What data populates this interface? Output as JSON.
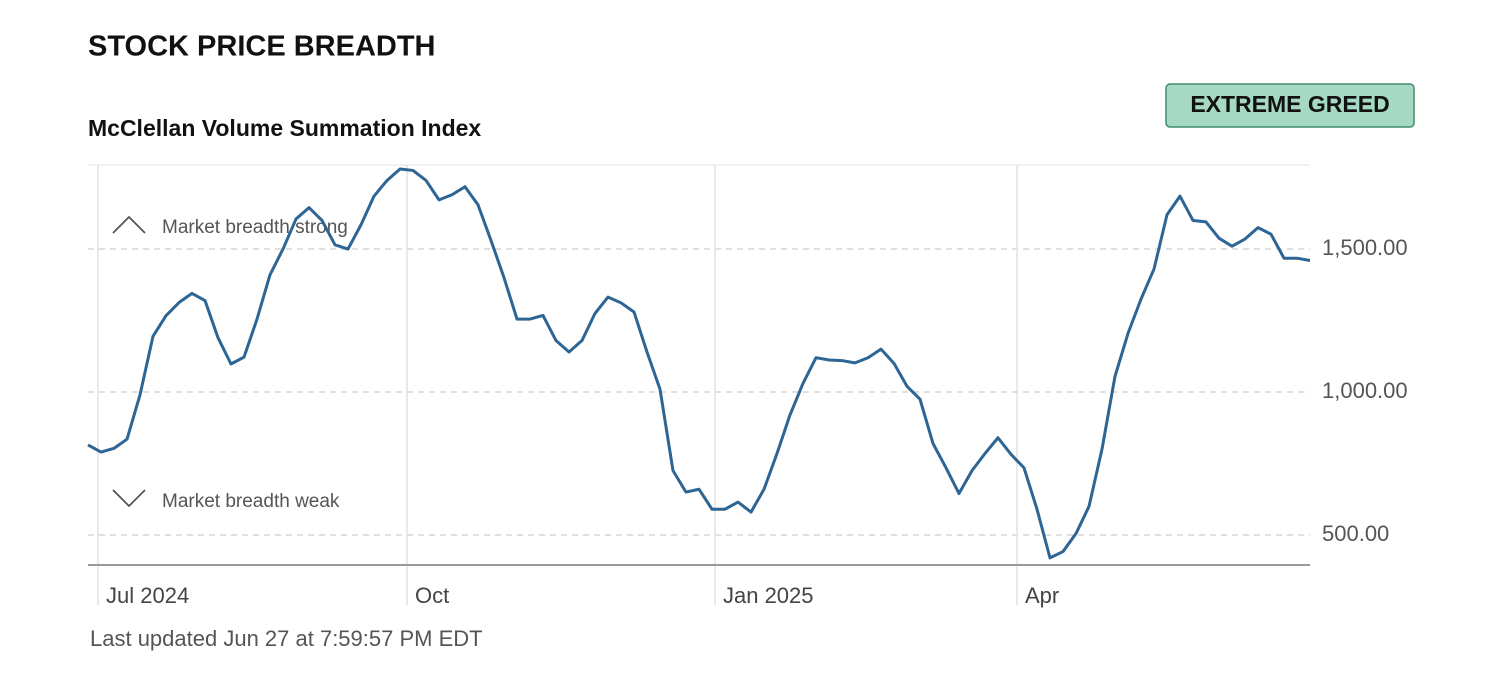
{
  "header": {
    "title": "STOCK PRICE BREADTH",
    "badge": "EXTREME GREED"
  },
  "chart_data": {
    "type": "line",
    "subtitle": "McClellan Volume Summation Index",
    "series": [
      {
        "color": "#2d6594",
        "values": [
          815,
          790,
          803,
          835,
          990,
          1195,
          1267,
          1313,
          1345,
          1320,
          1190,
          1098,
          1122,
          1255,
          1410,
          1500,
          1605,
          1645,
          1600,
          1515,
          1500,
          1585,
          1685,
          1740,
          1780,
          1775,
          1740,
          1672,
          1690,
          1718,
          1655,
          1530,
          1400,
          1255,
          1255,
          1268,
          1180,
          1140,
          1180,
          1275,
          1332,
          1312,
          1280,
          1140,
          1010,
          725,
          650,
          660,
          590,
          590,
          615,
          580,
          660,
          785,
          920,
          1030,
          1120,
          1112,
          1110,
          1102,
          1120,
          1150,
          1100,
          1020,
          975,
          820,
          735,
          645,
          725,
          785,
          840,
          782,
          735,
          590,
          420,
          442,
          505,
          600,
          800,
          1055,
          1205,
          1325,
          1430,
          1620,
          1685,
          1600,
          1595,
          1538,
          1510,
          1535,
          1575,
          1552,
          1468,
          1468,
          1460
        ]
      }
    ],
    "xlim": [
      0,
      94
    ],
    "xticks": [
      {
        "value": 0.77,
        "label": "Jul 2024"
      },
      {
        "value": 24.54,
        "label": "Oct"
      },
      {
        "value": 48.23,
        "label": "Jan 2025"
      },
      {
        "value": 71.46,
        "label": "Apr"
      }
    ],
    "ylim": [
      395,
      1794
    ],
    "yticks": [
      {
        "value": 500,
        "label": "500.00"
      },
      {
        "value": 1000,
        "label": "1,000.00"
      },
      {
        "value": 1500,
        "label": "1,500.00"
      }
    ],
    "annotations": [
      "Market breadth strong",
      "Market breadth weak"
    ],
    "grid": true
  },
  "footer": "Last updated Jun 27 at 7:59:57 PM EDT"
}
